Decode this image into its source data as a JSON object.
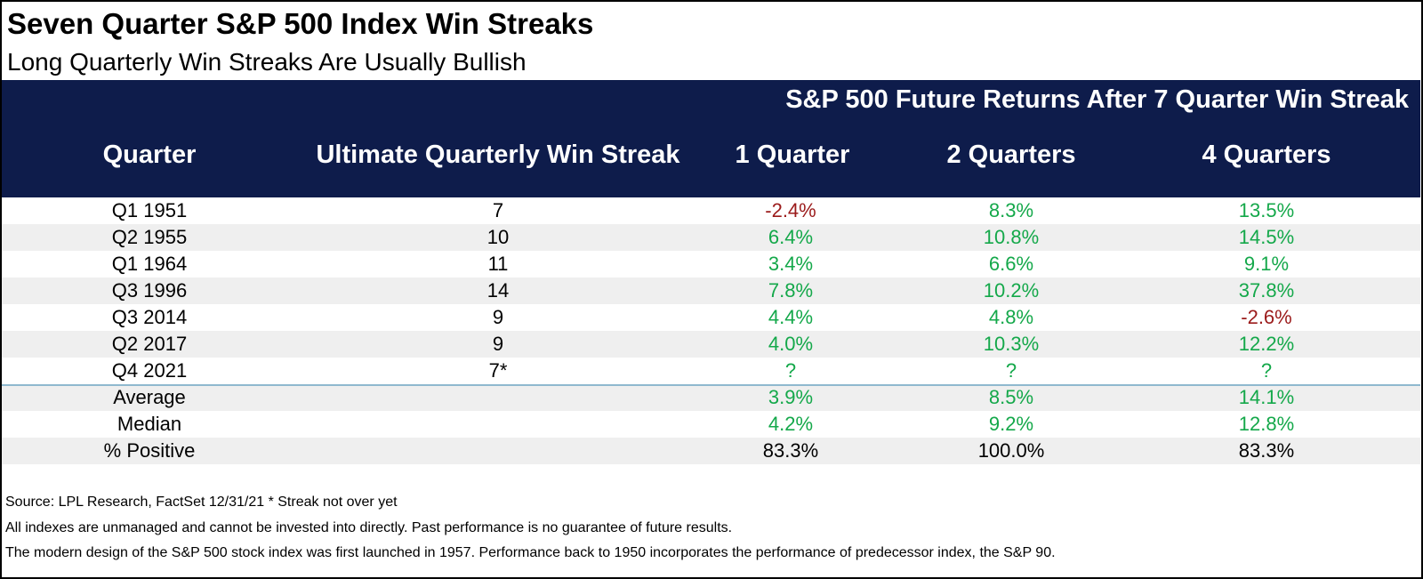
{
  "chart_data": {
    "type": "table",
    "title": "Seven Quarter S&P 500 Index Win Streaks",
    "subtitle": "Long Quarterly Win Streaks Are Usually Bullish",
    "group_header": "S&P 500 Future Returns After 7 Quarter Win Streak",
    "columns": [
      "Quarter",
      "Ultimate Quarterly Win Streak",
      "1 Quarter",
      "2 Quarters",
      "4 Quarters"
    ],
    "rows": [
      {
        "quarter": "Q1 1951",
        "streak": "7",
        "q1": "-2.4%",
        "q2": "8.3%",
        "q4": "13.5%"
      },
      {
        "quarter": "Q2 1955",
        "streak": "10",
        "q1": "6.4%",
        "q2": "10.8%",
        "q4": "14.5%"
      },
      {
        "quarter": "Q1 1964",
        "streak": "11",
        "q1": "3.4%",
        "q2": "6.6%",
        "q4": "9.1%"
      },
      {
        "quarter": "Q3 1996",
        "streak": "14",
        "q1": "7.8%",
        "q2": "10.2%",
        "q4": "37.8%"
      },
      {
        "quarter": "Q3 2014",
        "streak": "9",
        "q1": "4.4%",
        "q2": "4.8%",
        "q4": "-2.6%"
      },
      {
        "quarter": "Q2 2017",
        "streak": "9",
        "q1": "4.0%",
        "q2": "10.3%",
        "q4": "12.2%"
      },
      {
        "quarter": "Q4 2021",
        "streak": "7*",
        "q1": "?",
        "q2": "?",
        "q4": "?"
      }
    ],
    "summary": [
      {
        "label": "Average",
        "q1": "3.9%",
        "q2": "8.5%",
        "q4": "14.1%"
      },
      {
        "label": "Median",
        "q1": "4.2%",
        "q2": "9.2%",
        "q4": "12.8%"
      },
      {
        "label": "% Positive",
        "q1": "83.3%",
        "q2": "100.0%",
        "q4": "83.3%"
      }
    ]
  },
  "footnotes": {
    "source": "Source: LPL Research, FactSet 12/31/21     * Streak not over yet",
    "disclaimer": "All indexes are unmanaged and cannot be invested into directly. Past performance is no guarantee of future results.",
    "history": "The modern design of the S&P 500 stock index was first launched in 1957. Performance back to 1950 incorporates the performance of predecessor index, the S&P 90."
  },
  "colors": {
    "header_bg": "#0e1c4b",
    "positive": "#14a84a",
    "negative": "#9b1b1b",
    "row_shade": "#efefef",
    "divider": "#8fb9cf"
  }
}
